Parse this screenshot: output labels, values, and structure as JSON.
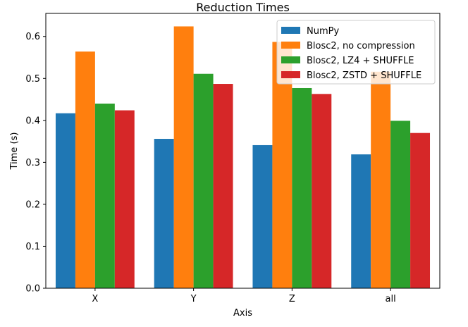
{
  "chart_data": {
    "type": "bar",
    "title": "Reduction Times",
    "xlabel": "Axis",
    "ylabel": "Time (s)",
    "categories": [
      "X",
      "Y",
      "Z",
      "all"
    ],
    "ylim": [
      0,
      0.655
    ],
    "yticks": [
      "0.0",
      "0.1",
      "0.2",
      "0.3",
      "0.4",
      "0.5",
      "0.6"
    ],
    "grid": false,
    "legend_position": "top-right",
    "series": [
      {
        "name": "NumPy",
        "color": "#1f77b4",
        "values": [
          0.417,
          0.356,
          0.341,
          0.319
        ]
      },
      {
        "name": "Blosc2, no compression",
        "color": "#ff7f0e",
        "values": [
          0.564,
          0.624,
          0.587,
          0.516
        ]
      },
      {
        "name": "Blosc2, LZ4 + SHUFFLE",
        "color": "#2ca02c",
        "values": [
          0.44,
          0.511,
          0.477,
          0.399
        ]
      },
      {
        "name": "Blosc2, ZSTD + SHUFFLE",
        "color": "#d62728",
        "values": [
          0.424,
          0.487,
          0.463,
          0.37
        ]
      }
    ]
  }
}
